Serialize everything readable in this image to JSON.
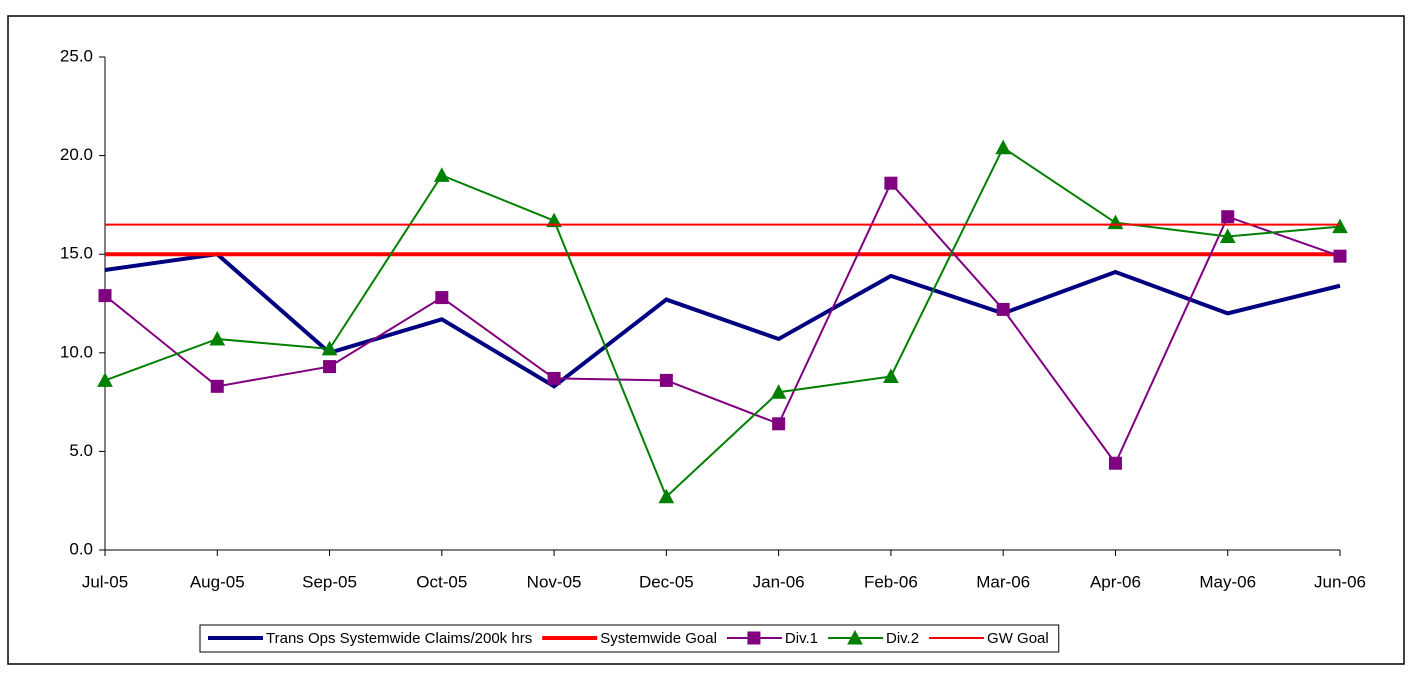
{
  "chart_data": {
    "type": "line",
    "categories": [
      "Jul-05",
      "Aug-05",
      "Sep-05",
      "Oct-05",
      "Nov-05",
      "Dec-05",
      "Jan-06",
      "Feb-06",
      "Mar-06",
      "Apr-06",
      "May-06",
      "Jun-06"
    ],
    "series": [
      {
        "name": "Trans Ops Systemwide Claims/200k hrs",
        "color": "#000080",
        "line_width": 4,
        "marker": null,
        "values": [
          14.2,
          15.0,
          10.0,
          11.7,
          8.3,
          12.7,
          10.7,
          13.9,
          12.0,
          14.1,
          12.0,
          13.4
        ]
      },
      {
        "name": "Systemwide Goal",
        "color": "#ff0000",
        "line_width": 4,
        "marker": null,
        "values": [
          15.0,
          15.0,
          15.0,
          15.0,
          15.0,
          15.0,
          15.0,
          15.0,
          15.0,
          15.0,
          15.0,
          15.0
        ]
      },
      {
        "name": "Div.1",
        "color": "#800080",
        "line_width": 2,
        "marker": "square",
        "values": [
          12.9,
          8.3,
          9.3,
          12.8,
          8.7,
          8.6,
          6.4,
          18.6,
          12.2,
          4.4,
          16.9,
          14.9
        ]
      },
      {
        "name": "Div.2",
        "color": "#008000",
        "line_width": 2,
        "marker": "triangle",
        "values": [
          8.6,
          10.7,
          10.2,
          19.0,
          16.7,
          2.7,
          8.0,
          8.8,
          20.4,
          16.6,
          15.9,
          16.4
        ]
      },
      {
        "name": "GW Goal",
        "color": "#ff0000",
        "line_width": 2,
        "marker": null,
        "values": [
          16.5,
          16.5,
          16.5,
          16.5,
          16.5,
          16.5,
          16.5,
          16.5,
          16.5,
          16.5,
          16.5,
          16.5
        ]
      }
    ],
    "ylim": [
      0,
      25
    ],
    "yticks": [
      {
        "value": 0,
        "label": "0.0"
      },
      {
        "value": 5,
        "label": "5.0"
      },
      {
        "value": 10,
        "label": "10.0"
      },
      {
        "value": 15,
        "label": "15.0"
      },
      {
        "value": 20,
        "label": "20.0"
      },
      {
        "value": 25,
        "label": "25.0"
      }
    ],
    "grid": false,
    "legend": "bottom"
  }
}
